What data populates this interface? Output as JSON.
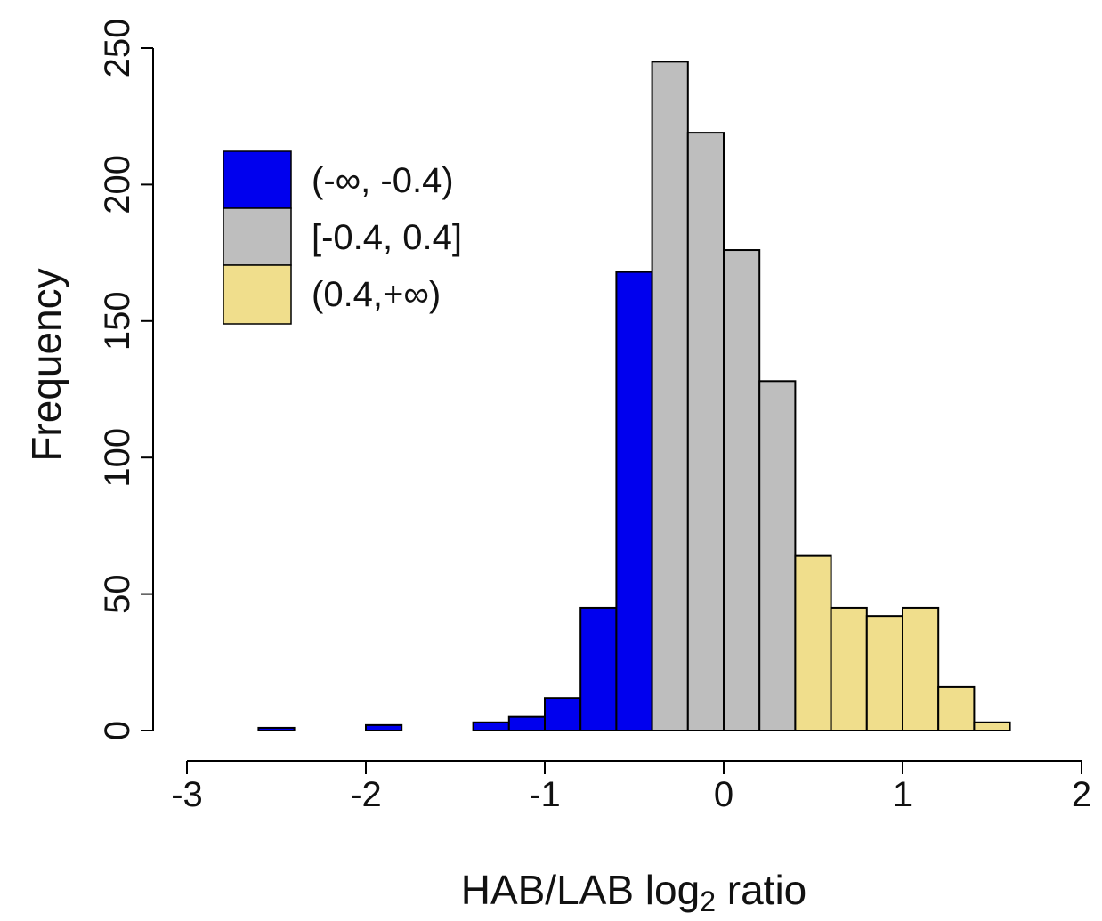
{
  "chart_data": {
    "type": "bar",
    "bin_edges": [
      -2.6,
      -2.4,
      -2.2,
      -2.0,
      -1.8,
      -1.6,
      -1.4,
      -1.2,
      -1.0,
      -0.8,
      -0.6,
      -0.4,
      -0.2,
      0.0,
      0.2,
      0.4,
      0.6,
      0.8,
      1.0,
      1.2,
      1.4,
      1.6
    ],
    "values": [
      1,
      0,
      0,
      2,
      0,
      0,
      3,
      5,
      12,
      45,
      168,
      245,
      219,
      176,
      128,
      64,
      45,
      42,
      45,
      16,
      3
    ],
    "bin_groups": [
      0,
      0,
      0,
      0,
      0,
      0,
      0,
      0,
      0,
      0,
      0,
      1,
      1,
      1,
      1,
      2,
      2,
      2,
      2,
      2,
      2
    ],
    "xlabel_main": "HAB/LAB log",
    "xlabel_sub": "2",
    "xlabel_tail": " ratio",
    "ylabel": "Frequency",
    "xlim": [
      -3,
      2
    ],
    "ylim": [
      0,
      250
    ],
    "x_ticks": [
      "-3",
      "-2",
      "-1",
      "0",
      "1",
      "2"
    ],
    "y_ticks": [
      "0",
      "50",
      "100",
      "150",
      "200",
      "250"
    ],
    "grid": false,
    "legend_position": "top-left",
    "legend": [
      {
        "label": "(-∞, -0.4)",
        "color": "#0000ee"
      },
      {
        "label": "[-0.4, 0.4]",
        "color": "#bebebe"
      },
      {
        "label": "(0.4,+∞)",
        "color": "#f0de8c"
      }
    ]
  }
}
